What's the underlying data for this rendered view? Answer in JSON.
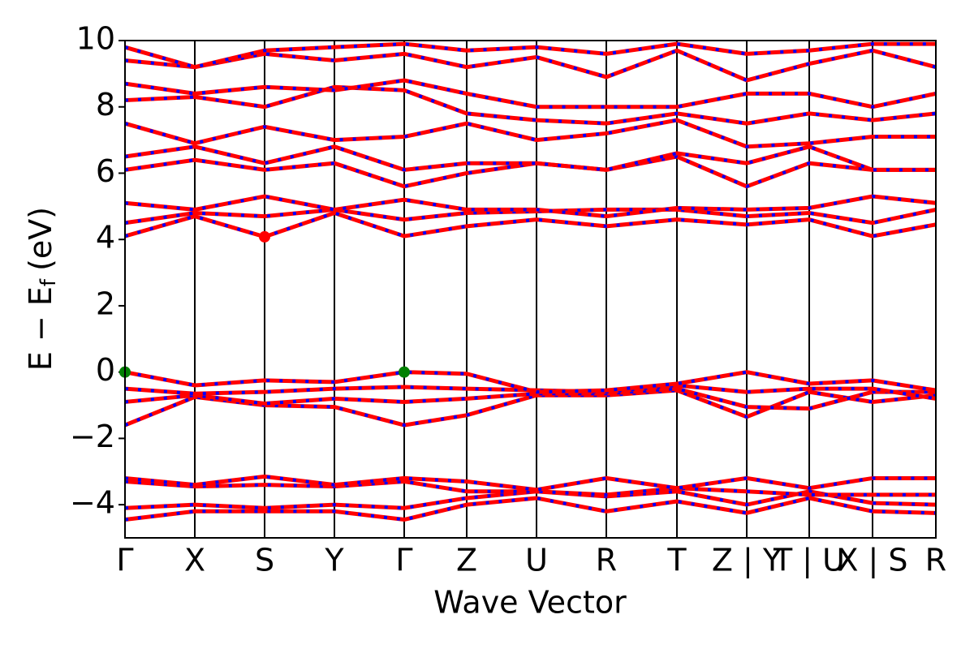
{
  "chart_data": {
    "type": "band_structure",
    "x_label": "Wave Vector",
    "y_label": {
      "main": "E − E",
      "sub": "f",
      "unit": "(eV)"
    },
    "x": [
      0,
      0.86,
      1.72,
      2.58,
      3.44,
      4.21,
      5.07,
      5.93,
      6.8,
      7.66,
      8.43,
      9.21,
      9.99
    ],
    "xlim": [
      0,
      9.99
    ],
    "xticks": [
      {
        "value": 0,
        "label": "Γ"
      },
      {
        "value": 0.86,
        "label": "X"
      },
      {
        "value": 1.72,
        "label": "S"
      },
      {
        "value": 2.58,
        "label": "Y"
      },
      {
        "value": 3.44,
        "label": "Γ"
      },
      {
        "value": 4.21,
        "label": "Z"
      },
      {
        "value": 5.07,
        "label": "U"
      },
      {
        "value": 5.93,
        "label": "R"
      },
      {
        "value": 6.8,
        "label": "T"
      },
      {
        "value": 7.66,
        "label": "Z | Y"
      },
      {
        "value": 8.43,
        "label": "T | U"
      },
      {
        "value": 9.21,
        "label": "X | S"
      },
      {
        "value": 9.99,
        "label": "R"
      }
    ],
    "ylim": [
      -5,
      10
    ],
    "yticks": [
      {
        "value": -4,
        "label": "−4"
      },
      {
        "value": -2,
        "label": "−2"
      },
      0,
      2,
      4,
      6,
      8,
      10
    ],
    "kpoint_lines": true,
    "line_color": "#ff0000",
    "dash_color": "#0000ff",
    "series": [
      {
        "values": [
          -4.45,
          -4.2,
          -4.2,
          -4.2,
          -4.45,
          -4.0,
          -3.8,
          -4.2,
          -3.9,
          -4.25,
          -3.8,
          -4.2,
          -4.25
        ]
      },
      {
        "values": [
          -4.1,
          -4.0,
          -4.1,
          -4.0,
          -4.1,
          -3.8,
          -3.6,
          -3.75,
          -3.6,
          -4.0,
          -3.6,
          -3.95,
          -4.0
        ]
      },
      {
        "values": [
          -3.3,
          -3.45,
          -3.4,
          -3.45,
          -3.3,
          -3.6,
          -3.6,
          -3.7,
          -3.5,
          -3.6,
          -3.7,
          -3.7,
          -3.7
        ]
      },
      {
        "values": [
          -3.2,
          -3.4,
          -3.15,
          -3.4,
          -3.2,
          -3.3,
          -3.55,
          -3.2,
          -3.5,
          -3.2,
          -3.5,
          -3.2,
          -3.2
        ]
      },
      {
        "values": [
          -1.6,
          -0.75,
          -1.0,
          -1.05,
          -1.6,
          -1.3,
          -0.7,
          -0.7,
          -0.55,
          -1.35,
          -0.6,
          -0.9,
          -0.7
        ]
      },
      {
        "values": [
          -0.9,
          -0.7,
          -0.95,
          -0.8,
          -0.9,
          -0.8,
          -0.65,
          -0.65,
          -0.5,
          -1.05,
          -1.1,
          -0.6,
          -0.6
        ]
      },
      {
        "values": [
          -0.5,
          -0.65,
          -0.6,
          -0.5,
          -0.45,
          -0.5,
          -0.55,
          -0.6,
          -0.4,
          -0.6,
          -0.5,
          -0.5,
          -0.8
        ]
      },
      {
        "values": [
          0,
          -0.4,
          -0.25,
          -0.3,
          0,
          -0.05,
          -0.6,
          -0.55,
          -0.35,
          0,
          -0.35,
          -0.25,
          -0.55
        ]
      },
      {
        "values": [
          4.1,
          4.7,
          4.08,
          4.8,
          4.1,
          4.4,
          4.6,
          4.4,
          4.6,
          4.45,
          4.6,
          4.1,
          4.45
        ]
      },
      {
        "values": [
          4.5,
          4.8,
          4.7,
          4.9,
          4.6,
          4.8,
          4.85,
          4.9,
          4.9,
          4.7,
          4.8,
          4.5,
          4.9
        ]
      },
      {
        "values": [
          5.1,
          4.9,
          5.3,
          4.9,
          5.2,
          4.9,
          4.9,
          4.7,
          4.95,
          4.9,
          4.95,
          5.3,
          5.1
        ]
      },
      {
        "values": [
          6.1,
          6.4,
          6.1,
          6.3,
          5.6,
          6.0,
          6.3,
          6.1,
          6.5,
          5.6,
          6.3,
          6.1,
          6.1
        ]
      },
      {
        "values": [
          6.5,
          6.8,
          6.3,
          6.8,
          6.1,
          6.3,
          6.3,
          6.1,
          6.6,
          6.3,
          6.8,
          6.1,
          6.1
        ]
      },
      {
        "values": [
          7.5,
          6.9,
          7.4,
          7.0,
          7.1,
          7.5,
          7.0,
          7.2,
          7.6,
          6.8,
          6.9,
          7.1,
          7.1
        ]
      },
      {
        "values": [
          8.2,
          8.3,
          8.0,
          8.6,
          8.5,
          7.8,
          7.6,
          7.5,
          7.8,
          7.5,
          7.8,
          7.6,
          7.8
        ]
      },
      {
        "values": [
          8.7,
          8.4,
          8.6,
          8.5,
          8.8,
          8.4,
          8.0,
          8.0,
          8.0,
          8.4,
          8.4,
          8.0,
          8.4
        ]
      },
      {
        "values": [
          9.4,
          9.2,
          9.6,
          9.4,
          9.6,
          9.2,
          9.5,
          8.9,
          9.7,
          8.8,
          9.3,
          9.7,
          9.2
        ]
      },
      {
        "values": [
          9.8,
          9.2,
          9.7,
          9.8,
          9.9,
          9.7,
          9.8,
          9.6,
          9.9,
          9.6,
          9.7,
          9.9,
          9.9
        ]
      }
    ],
    "markers": [
      {
        "x": 0,
        "y": 0,
        "color": "#008000"
      },
      {
        "x": 3.44,
        "y": 0,
        "color": "#008000"
      },
      {
        "x": 1.72,
        "y": 4.08,
        "color": "#ff0000"
      }
    ]
  }
}
